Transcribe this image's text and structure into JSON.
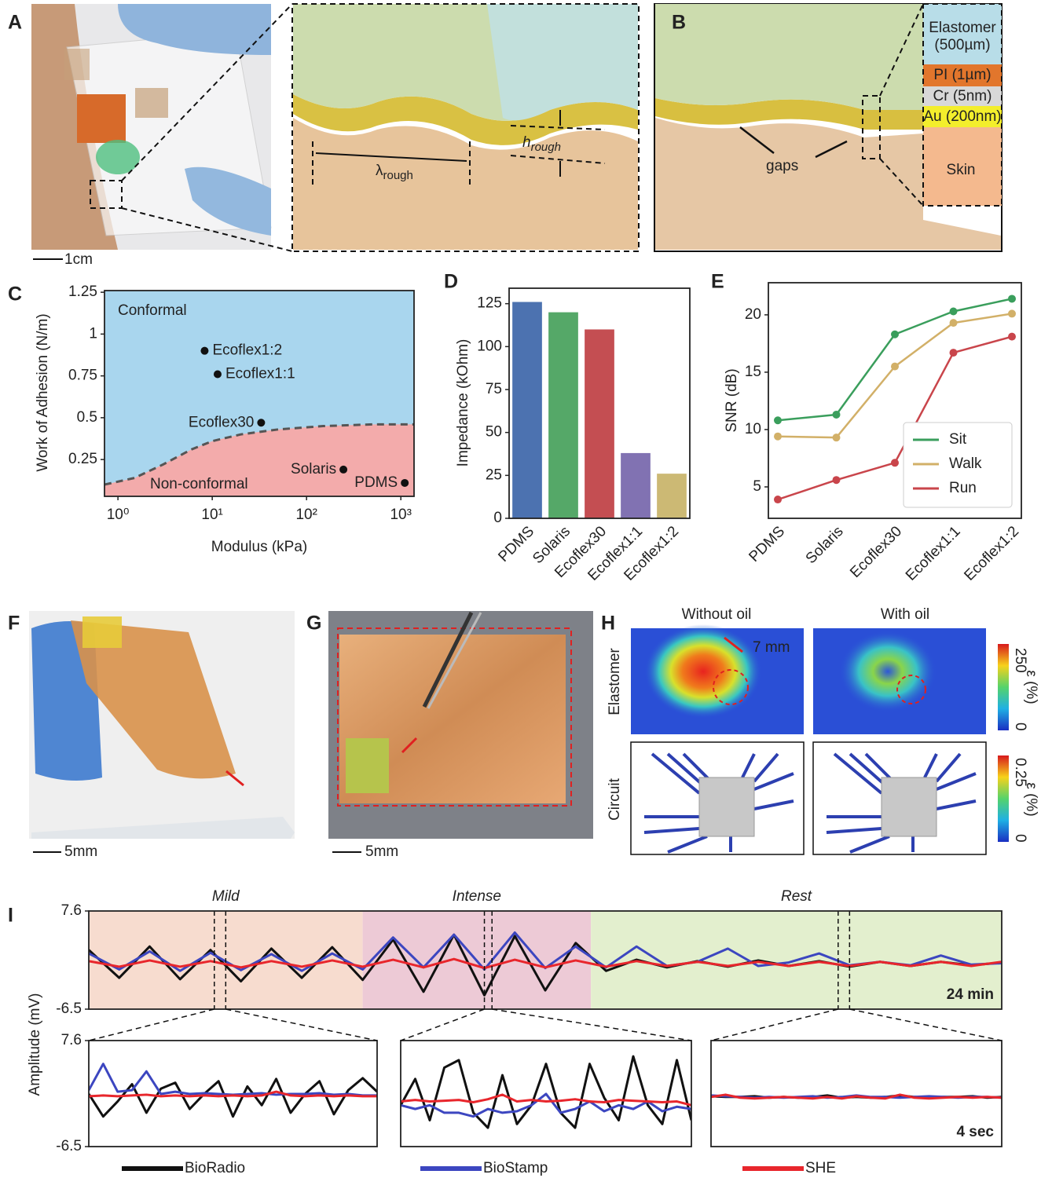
{
  "figure": {
    "panel_labels": [
      "A",
      "B",
      "F",
      "G",
      "H"
    ],
    "a": {
      "scale": "1cm",
      "lambda": "λ",
      "h": "h",
      "sub": "rough"
    },
    "b": {
      "layers": [
        [
          "Elastomer",
          "(500µm)"
        ],
        [
          "PI (1µm)"
        ],
        [
          "Cr (5nm)"
        ],
        [
          "Au (200nm)"
        ],
        [
          "Skin"
        ]
      ],
      "gaps": "gaps"
    },
    "f": {
      "scale": "5mm"
    },
    "g": {
      "scale": "5mm"
    },
    "h": {
      "columns": [
        "Without oil",
        "With oil"
      ],
      "rows": [
        "Elastomer",
        "Circuit"
      ],
      "top_scale": [
        "250",
        "0"
      ],
      "bottom_scale": [
        "0.25",
        "0"
      ],
      "unit": "ε (%)",
      "arrow": "7 mm"
    }
  },
  "chart_data": [
    {
      "type": "scatter",
      "label": "C",
      "x_label": "Modulus (kPa)",
      "y_label": "Work of Adhesion (N/m)",
      "xscale": "log",
      "xlim": [
        0.72,
        1380
      ],
      "ylim": [
        0.03,
        1.26
      ],
      "xticks": [
        {
          "value": 1,
          "label": "10⁰"
        },
        {
          "value": 10,
          "label": "10¹"
        },
        {
          "value": 100,
          "label": "10²"
        },
        {
          "value": 1000,
          "label": "10³"
        }
      ],
      "yticks": [
        0.25,
        0.5,
        0.75,
        1.0,
        1.25
      ],
      "labels": [
        "Ecoflex1:2",
        "Ecoflex1:1",
        "Ecoflex30",
        "Solaris",
        "PDMS"
      ],
      "x": [
        8.3,
        11.4,
        33,
        246,
        1100
      ],
      "y": [
        0.9,
        0.76,
        0.47,
        0.19,
        0.11
      ],
      "boundary": {
        "x": [
          0.72,
          1.5,
          3,
          6,
          10,
          20,
          50,
          150,
          500,
          1380
        ],
        "y": [
          0.1,
          0.14,
          0.22,
          0.31,
          0.36,
          0.4,
          0.43,
          0.45,
          0.46,
          0.46
        ]
      },
      "regions": [
        {
          "label": "Conformal",
          "color": "#a9d6ee"
        },
        {
          "label": "Non-conformal",
          "color": "#f3abab"
        }
      ]
    },
    {
      "type": "bar",
      "label": "D",
      "y_label": "Impedance (kOhm)",
      "categories": [
        "PDMS",
        "Solaris",
        "Ecoflex30",
        "Ecoflex1:1",
        "Ecoflex1:2"
      ],
      "values": [
        126,
        120,
        110,
        38,
        26
      ],
      "colors": [
        "#4c72b0",
        "#55a868",
        "#c44e52",
        "#8172b2",
        "#ccb974"
      ],
      "ylim": [
        0,
        134
      ],
      "yticks": [
        0,
        25,
        50,
        75,
        100,
        125
      ]
    },
    {
      "type": "line",
      "label": "E",
      "y_label": "SNR (dB)",
      "markers": true,
      "legend": "lower right",
      "categories": [
        "PDMS",
        "Solaris",
        "Ecoflex30",
        "Ecoflex1:1",
        "Ecoflex1:2"
      ],
      "ylim": [
        2.26,
        22.8
      ],
      "yticks": [
        5,
        10,
        15,
        20
      ],
      "series": [
        {
          "name": "Sit",
          "color": "#3a9e5c",
          "values": [
            10.8,
            11.3,
            18.3,
            20.3,
            21.4
          ]
        },
        {
          "name": "Walk",
          "color": "#d2b068",
          "values": [
            9.4,
            9.3,
            15.5,
            19.3,
            20.1
          ]
        },
        {
          "name": "Run",
          "color": "#c9454b",
          "values": [
            3.9,
            5.6,
            7.1,
            16.7,
            18.1
          ]
        }
      ]
    },
    {
      "type": "line",
      "label": "I",
      "y_label": "Amplitude (mV)",
      "legend": "below",
      "annotation": "24 min",
      "xlim": [
        0,
        24
      ],
      "ylim": [
        -6.5,
        7.6
      ],
      "yticks": [
        7.6,
        -6.5
      ],
      "bands": [
        {
          "label": "Mild",
          "from": 0,
          "to": 7.2,
          "color": "#f7dccf"
        },
        {
          "label": "Intense",
          "from": 7.2,
          "to": 13.2,
          "color": "#edcad6"
        },
        {
          "label": "Rest",
          "from": 13.2,
          "to": 24,
          "color": "#e3efce"
        }
      ],
      "markers": [
        3.3,
        3.6,
        10.4,
        10.6,
        19.7,
        20.0
      ],
      "x": [
        0,
        0.8,
        1.6,
        2.4,
        3.2,
        4,
        4.8,
        5.6,
        6.4,
        7.2,
        8,
        8.8,
        9.6,
        10.4,
        11.2,
        12,
        12.8,
        13.6,
        14.4,
        15.2,
        16,
        16.8,
        17.6,
        18.4,
        19.2,
        20,
        20.8,
        21.6,
        22.4,
        23.2,
        24
      ],
      "series": [
        {
          "name": "BioRadio",
          "color": "#111111",
          "values": [
            2,
            -2,
            2.5,
            -2.2,
            2,
            -2.5,
            2.2,
            -2,
            2.4,
            -2.3,
            3.5,
            -4,
            4.2,
            -4.5,
            4,
            -3.8,
            3,
            -1,
            0.6,
            -0.5,
            0.4,
            -0.4,
            0.5,
            -0.3,
            0.4,
            -0.4,
            0.3,
            -0.3,
            0.3,
            -0.2,
            0.2
          ]
        },
        {
          "name": "BioStamp",
          "color": "#3c46c0",
          "values": [
            1.5,
            -0.8,
            1.8,
            -1,
            1.6,
            -0.9,
            1.4,
            -1,
            1.5,
            -0.8,
            3.8,
            -0.5,
            4.2,
            -0.8,
            4.5,
            -0.6,
            2.5,
            -0.5,
            2.5,
            -0.3,
            0.3,
            2.2,
            -0.3,
            0.2,
            1.5,
            -0.2,
            0.3,
            -0.2,
            1.2,
            -0.1,
            0.1
          ]
        },
        {
          "name": "SHE",
          "color": "#e8262c",
          "values": [
            0.4,
            -0.4,
            0.5,
            -0.4,
            0.4,
            -0.5,
            0.4,
            -0.4,
            0.5,
            -0.4,
            0.6,
            -0.5,
            0.7,
            -0.6,
            0.6,
            -0.5,
            0.5,
            -0.4,
            0.4,
            -0.3,
            0.3,
            -0.3,
            0.3,
            -0.3,
            0.3,
            -0.3,
            0.3,
            -0.3,
            0.3,
            -0.3,
            0.3
          ]
        }
      ]
    },
    {
      "type": "line",
      "xlim": [
        0,
        4
      ],
      "ylim": [
        -6.5,
        7.6
      ],
      "yticks": [
        7.6,
        -6.5
      ],
      "x": [
        0,
        0.2,
        0.4,
        0.6,
        0.8,
        1,
        1.2,
        1.4,
        1.6,
        1.8,
        2,
        2.2,
        2.4,
        2.6,
        2.8,
        3,
        3.2,
        3.4,
        3.6,
        3.8,
        4
      ],
      "series": [
        {
          "color": "#111111",
          "values": [
            0.5,
            -2.5,
            -0.5,
            1.8,
            -2,
            1.2,
            2,
            -1.5,
            0.5,
            2.2,
            -2.5,
            1.5,
            -1,
            2.5,
            -2,
            0.5,
            2.2,
            -2.2,
            1,
            2.6,
            0.8
          ]
        },
        {
          "color": "#3c46c0",
          "values": [
            1,
            4.5,
            0.8,
            1,
            3.5,
            0.5,
            0.8,
            0.5,
            0.6,
            0.5,
            0.4,
            0.5,
            0.6,
            0.4,
            0.5,
            0.5,
            0.6,
            0.4,
            0.5,
            0.3,
            0.3
          ]
        },
        {
          "color": "#e8262c",
          "values": [
            0.2,
            0.3,
            0.2,
            0.3,
            0.4,
            0.2,
            0.3,
            0.2,
            0.3,
            0.2,
            0.3,
            0.2,
            0.3,
            0.8,
            0.3,
            0.2,
            0.3,
            0.2,
            0.3,
            0.2,
            0.2
          ]
        }
      ]
    },
    {
      "type": "line",
      "xlim": [
        0,
        4
      ],
      "ylim": [
        -6.5,
        7.6
      ],
      "x": [
        0,
        0.2,
        0.4,
        0.6,
        0.8,
        1,
        1.2,
        1.4,
        1.6,
        1.8,
        2,
        2.2,
        2.4,
        2.6,
        2.8,
        3,
        3.2,
        3.4,
        3.6,
        3.8,
        4
      ],
      "series": [
        {
          "color": "#111111",
          "values": [
            -1,
            2.5,
            -3,
            4,
            5,
            -2,
            -4,
            3,
            -3.5,
            -1,
            4.5,
            -2,
            -4,
            4.5,
            0,
            -3,
            5.5,
            -1,
            -3.5,
            5,
            -3
          ]
        },
        {
          "color": "#3c46c0",
          "values": [
            -1,
            -1.5,
            -1,
            -2,
            -2,
            -2.5,
            -1.5,
            -2,
            -1.8,
            -1,
            0.5,
            -2,
            -1.5,
            -0.5,
            -1.8,
            -1,
            -1.5,
            -0.5,
            -1.8,
            -1.2,
            -1.5
          ]
        },
        {
          "color": "#e8262c",
          "values": [
            -0.5,
            -0.3,
            -0.5,
            -0.4,
            -0.3,
            -0.6,
            -0.2,
            0.4,
            -0.5,
            -0.3,
            -0.5,
            -0.4,
            -0.2,
            -0.5,
            -0.6,
            -0.3,
            -0.4,
            -0.5,
            -0.6,
            -0.5,
            -1
          ]
        }
      ]
    },
    {
      "type": "line",
      "annotation": "4 sec",
      "xlim": [
        0,
        4
      ],
      "ylim": [
        -6.5,
        7.6
      ],
      "x": [
        0,
        0.2,
        0.4,
        0.6,
        0.8,
        1,
        1.2,
        1.4,
        1.6,
        1.8,
        2,
        2.2,
        2.4,
        2.6,
        2.8,
        3,
        3.2,
        3.4,
        3.6,
        3.8,
        4
      ],
      "series": [
        {
          "color": "#111111",
          "values": [
            0.2,
            0.1,
            0.1,
            0.2,
            0,
            0.1,
            0,
            0.1,
            0.3,
            0,
            0.1,
            0,
            0.1,
            0.3,
            0.1,
            0,
            0.1,
            0.1,
            0.2,
            0,
            0.1
          ]
        },
        {
          "color": "#3c46c0",
          "values": [
            0.3,
            0.2,
            0.1,
            0,
            0.1,
            0,
            0.1,
            0.2,
            0,
            0.1,
            0.3,
            0.1,
            0.1,
            0,
            0.1,
            0.2,
            0.1,
            0,
            0.1,
            0.1,
            0
          ]
        },
        {
          "color": "#e8262c",
          "values": [
            0.1,
            0.4,
            0,
            -0.1,
            0,
            0.1,
            0,
            -0.1,
            0.1,
            -0.1,
            0.2,
            0,
            -0.1,
            0.4,
            0,
            -0.1,
            0,
            0.1,
            0,
            0.1,
            0
          ]
        }
      ]
    }
  ]
}
